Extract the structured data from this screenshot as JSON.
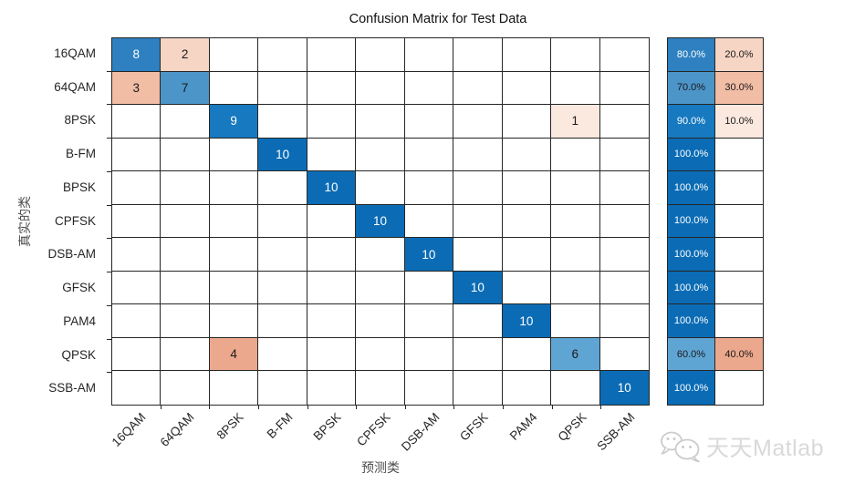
{
  "title": "Confusion Matrix for Test Data",
  "axes": {
    "x_label": "预测类",
    "y_label": "真实的类"
  },
  "chart_data": {
    "type": "heatmap",
    "title": "Confusion Matrix for Test Data",
    "xlabel": "预测类",
    "ylabel": "真实的类",
    "categories": [
      "16QAM",
      "64QAM",
      "8PSK",
      "B-FM",
      "BPSK",
      "CPFSK",
      "DSB-AM",
      "GFSK",
      "PAM4",
      "QPSK",
      "SSB-AM"
    ],
    "matrix": [
      [
        8,
        2,
        0,
        0,
        0,
        0,
        0,
        0,
        0,
        0,
        0
      ],
      [
        3,
        7,
        0,
        0,
        0,
        0,
        0,
        0,
        0,
        0,
        0
      ],
      [
        0,
        0,
        9,
        0,
        0,
        0,
        0,
        0,
        0,
        1,
        0
      ],
      [
        0,
        0,
        0,
        10,
        0,
        0,
        0,
        0,
        0,
        0,
        0
      ],
      [
        0,
        0,
        0,
        0,
        10,
        0,
        0,
        0,
        0,
        0,
        0
      ],
      [
        0,
        0,
        0,
        0,
        0,
        10,
        0,
        0,
        0,
        0,
        0
      ],
      [
        0,
        0,
        0,
        0,
        0,
        0,
        10,
        0,
        0,
        0,
        0
      ],
      [
        0,
        0,
        0,
        0,
        0,
        0,
        0,
        10,
        0,
        0,
        0
      ],
      [
        0,
        0,
        0,
        0,
        0,
        0,
        0,
        0,
        10,
        0,
        0
      ],
      [
        0,
        0,
        4,
        0,
        0,
        0,
        0,
        0,
        0,
        6,
        0
      ],
      [
        0,
        0,
        0,
        0,
        0,
        0,
        0,
        0,
        0,
        0,
        10
      ]
    ],
    "row_summary_correct": [
      "80.0%",
      "70.0%",
      "90.0%",
      "100.0%",
      "100.0%",
      "100.0%",
      "100.0%",
      "100.0%",
      "100.0%",
      "60.0%",
      "100.0%"
    ],
    "row_summary_incorrect": [
      "20.0%",
      "30.0%",
      "10.0%",
      "",
      "",
      "",
      "",
      "",
      "",
      "40.0%",
      ""
    ]
  },
  "colors": {
    "diagonal": {
      "6": "#5fa5d4",
      "7": "#4c95c9",
      "8": "#2e80c0",
      "9": "#1779bf",
      "10": "#0b6cb5"
    },
    "off_diagonal": {
      "1": "#fbe8df",
      "2": "#f6d5c5",
      "3": "#f1bda5",
      "4": "#eca88c"
    },
    "white_text_min_count": 8,
    "grid_line": "#262626",
    "cell_text_dark": "#1a1a1a",
    "cell_text_light": "#ffffff"
  },
  "watermark": {
    "icon": "wechat-icon",
    "text": "天天Matlab"
  }
}
